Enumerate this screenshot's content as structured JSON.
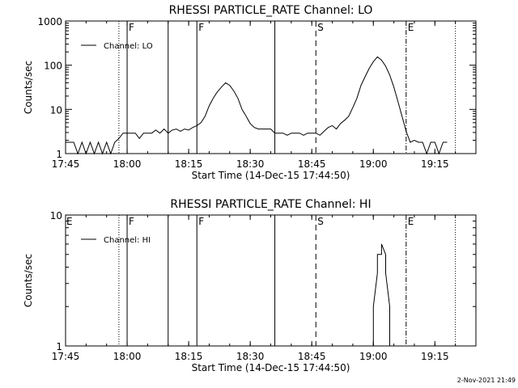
{
  "footer_timestamp": "2-Nov-2021 21:49",
  "chart_data": [
    {
      "type": "line",
      "title": "RHESSI PARTICLE_RATE Channel: LO",
      "xlabel": "Start Time (14-Dec-15 17:44:50)",
      "ylabel": "Counts/sec",
      "yscale": "log",
      "xlim": [
        "17:45",
        "19:25"
      ],
      "ylim": [
        1,
        1000
      ],
      "x_ticks": [
        "17:45",
        "18:00",
        "18:15",
        "18:30",
        "18:45",
        "19:00",
        "19:15"
      ],
      "y_ticks": [
        "1",
        "10",
        "100",
        "1000"
      ],
      "legend": {
        "position": "top-left",
        "entries": [
          "Channel: LO"
        ]
      },
      "markers": [
        {
          "time": "17:58",
          "label": "",
          "style": "dotted"
        },
        {
          "time": "18:00",
          "label": "F",
          "style": "solid"
        },
        {
          "time": "18:10",
          "label": "",
          "style": "solid"
        },
        {
          "time": "18:17",
          "label": "F",
          "style": "solid"
        },
        {
          "time": "18:36",
          "label": "",
          "style": "solid"
        },
        {
          "time": "18:46",
          "label": "S",
          "style": "dashed"
        },
        {
          "time": "19:08",
          "label": "E",
          "style": "dashdot"
        },
        {
          "time": "19:20",
          "label": "",
          "style": "dotted"
        }
      ],
      "series": [
        {
          "name": "Channel: LO",
          "points": [
            [
              "17:45",
              1.8
            ],
            [
              "17:47",
              1.8
            ],
            [
              "17:48",
              1
            ],
            [
              "17:49",
              1.8
            ],
            [
              "17:50",
              1
            ],
            [
              "17:51",
              1.8
            ],
            [
              "17:52",
              1
            ],
            [
              "17:53",
              1.8
            ],
            [
              "17:54",
              1
            ],
            [
              "17:55",
              1.8
            ],
            [
              "17:56",
              1
            ],
            [
              "17:57",
              1.8
            ],
            [
              "17:58",
              2.2
            ],
            [
              "17:59",
              2.9
            ],
            [
              "18:00",
              2.9
            ],
            [
              "18:02",
              2.9
            ],
            [
              "18:03",
              2.2
            ],
            [
              "18:04",
              2.9
            ],
            [
              "18:06",
              2.9
            ],
            [
              "18:07",
              3.4
            ],
            [
              "18:08",
              2.9
            ],
            [
              "18:09",
              3.6
            ],
            [
              "18:10",
              2.9
            ],
            [
              "18:11",
              3.4
            ],
            [
              "18:12",
              3.6
            ],
            [
              "18:13",
              3.2
            ],
            [
              "18:14",
              3.6
            ],
            [
              "18:15",
              3.4
            ],
            [
              "18:16",
              3.9
            ],
            [
              "18:17",
              4.3
            ],
            [
              "18:18",
              5
            ],
            [
              "18:19",
              7
            ],
            [
              "18:20",
              12
            ],
            [
              "18:21",
              18
            ],
            [
              "18:22",
              25
            ],
            [
              "18:23",
              32
            ],
            [
              "18:24",
              40
            ],
            [
              "18:25",
              35
            ],
            [
              "18:26",
              26
            ],
            [
              "18:27",
              18
            ],
            [
              "18:28",
              10
            ],
            [
              "18:29",
              7
            ],
            [
              "18:30",
              4.8
            ],
            [
              "18:31",
              3.9
            ],
            [
              "18:32",
              3.6
            ],
            [
              "18:33",
              3.6
            ],
            [
              "18:34",
              3.6
            ],
            [
              "18:35",
              3.6
            ],
            [
              "18:36",
              2.9
            ],
            [
              "18:38",
              2.9
            ],
            [
              "18:39",
              2.6
            ],
            [
              "18:40",
              2.9
            ],
            [
              "18:42",
              2.9
            ],
            [
              "18:43",
              2.6
            ],
            [
              "18:44",
              2.9
            ],
            [
              "18:46",
              2.9
            ],
            [
              "18:47",
              2.6
            ],
            [
              "18:48",
              3.2
            ],
            [
              "18:49",
              3.9
            ],
            [
              "18:50",
              4.3
            ],
            [
              "18:51",
              3.6
            ],
            [
              "18:52",
              4.8
            ],
            [
              "18:53",
              5.7
            ],
            [
              "18:54",
              7
            ],
            [
              "18:55",
              11
            ],
            [
              "18:56",
              18
            ],
            [
              "18:57",
              35
            ],
            [
              "18:58",
              55
            ],
            [
              "18:59",
              85
            ],
            [
              "19:00",
              120
            ],
            [
              "19:01",
              155
            ],
            [
              "19:02",
              130
            ],
            [
              "19:03",
              95
            ],
            [
              "19:04",
              60
            ],
            [
              "19:05",
              32
            ],
            [
              "19:06",
              15
            ],
            [
              "19:07",
              7
            ],
            [
              "19:08",
              3.2
            ],
            [
              "19:09",
              1.8
            ],
            [
              "19:10",
              2
            ],
            [
              "19:11",
              1.8
            ],
            [
              "19:12",
              1.8
            ],
            [
              "19:13",
              1
            ],
            [
              "19:14",
              1.8
            ],
            [
              "19:15",
              1.8
            ],
            [
              "19:16",
              1
            ],
            [
              "19:17",
              1.8
            ],
            [
              "19:18",
              1.8
            ]
          ]
        }
      ]
    },
    {
      "type": "line",
      "title": "RHESSI PARTICLE_RATE Channel: HI",
      "xlabel": "Start Time (14-Dec-15 17:44:50)",
      "ylabel": "Counts/sec",
      "yscale": "log",
      "xlim": [
        "17:45",
        "19:25"
      ],
      "ylim": [
        1,
        10
      ],
      "x_ticks": [
        "17:45",
        "18:00",
        "18:15",
        "18:30",
        "18:45",
        "19:00",
        "19:15"
      ],
      "y_ticks": [
        "1",
        "10"
      ],
      "legend": {
        "position": "top-left",
        "entries": [
          "Channel: HI"
        ]
      },
      "markers": [
        {
          "time": "17:45",
          "label": "E",
          "style": "none"
        },
        {
          "time": "17:58",
          "label": "",
          "style": "dotted"
        },
        {
          "time": "18:00",
          "label": "F",
          "style": "solid"
        },
        {
          "time": "18:10",
          "label": "",
          "style": "solid"
        },
        {
          "time": "18:17",
          "label": "F",
          "style": "solid"
        },
        {
          "time": "18:36",
          "label": "",
          "style": "solid"
        },
        {
          "time": "18:46",
          "label": "S",
          "style": "dashed"
        },
        {
          "time": "19:08",
          "label": "E",
          "style": "dashdot"
        },
        {
          "time": "19:20",
          "label": "",
          "style": "dotted"
        }
      ],
      "series": [
        {
          "name": "Channel: HI",
          "points": [
            [
              "19:00",
              1
            ],
            [
              "19:00",
              2
            ],
            [
              "19:01",
              3.6
            ],
            [
              "19:01",
              5
            ],
            [
              "19:02",
              5
            ],
            [
              "19:02",
              6
            ],
            [
              "19:03",
              5
            ],
            [
              "19:03",
              3.6
            ],
            [
              "19:04",
              2
            ],
            [
              "19:04",
              1
            ]
          ]
        }
      ]
    }
  ]
}
